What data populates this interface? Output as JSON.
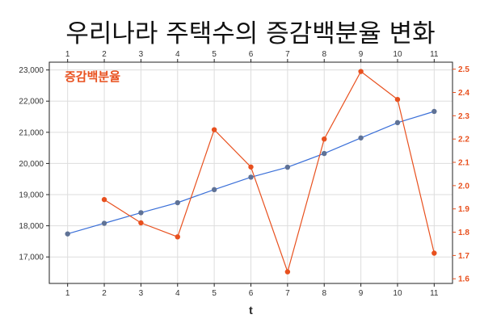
{
  "chart_data": {
    "type": "line",
    "title": "우리나라 주택수의 증감백분율 변화",
    "xlabel": "t",
    "x": [
      1,
      2,
      3,
      4,
      5,
      6,
      7,
      8,
      9,
      10,
      11
    ],
    "x_ticks": [
      "1",
      "2",
      "3",
      "4",
      "5",
      "6",
      "7",
      "8",
      "9",
      "10",
      "11"
    ],
    "xlim": [
      0.5,
      11.5
    ],
    "grid": true,
    "y_left": {
      "ylim": [
        16150,
        23250
      ],
      "ticks": [
        17000,
        18000,
        19000,
        20000,
        21000,
        22000,
        23000
      ],
      "tick_labels": [
        "17,000",
        "18,000",
        "19,000",
        "20,000",
        "21,000",
        "22,000",
        "23,000"
      ]
    },
    "y_right": {
      "ylim": [
        1.58,
        2.53
      ],
      "ticks": [
        1.6,
        1.7,
        1.8,
        1.9,
        2.0,
        2.1,
        2.2,
        2.3,
        2.4,
        2.5
      ],
      "tick_labels": [
        "1.6",
        "1.7",
        "1.8",
        "1.9",
        "2.0",
        "2.1",
        "2.2",
        "2.3",
        "2.4",
        "2.5"
      ]
    },
    "series": [
      {
        "axis": "left",
        "color": "#3a6fd8",
        "marker_color": "#5f7296",
        "x": [
          1,
          2,
          3,
          4,
          5,
          6,
          7,
          8,
          9,
          10,
          11
        ],
        "values": [
          17740,
          18080,
          18420,
          18740,
          19160,
          19560,
          19880,
          20320,
          20820,
          21310,
          21670
        ]
      },
      {
        "name": "증감백분율",
        "axis": "right",
        "color": "#e8501e",
        "x": [
          2,
          3,
          4,
          5,
          6,
          7,
          8,
          9,
          10,
          11
        ],
        "values": [
          1.94,
          1.84,
          1.78,
          2.24,
          2.08,
          1.63,
          2.2,
          2.49,
          2.37,
          1.71
        ]
      }
    ]
  }
}
